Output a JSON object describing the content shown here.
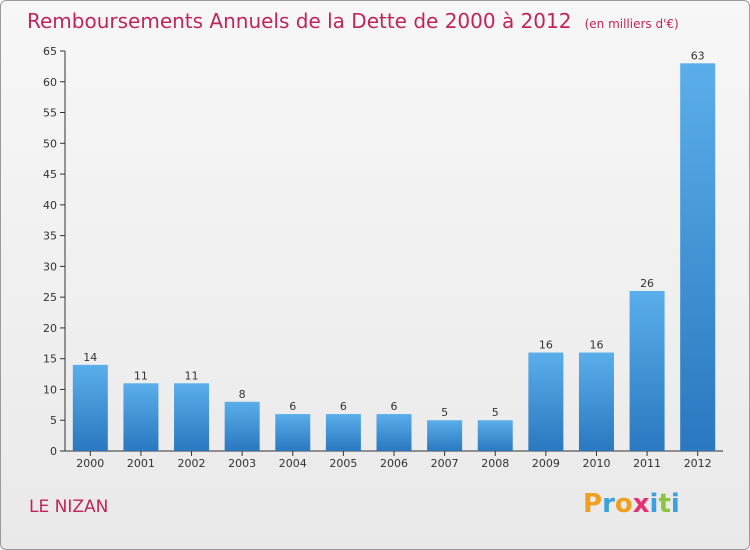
{
  "chart_data": {
    "type": "bar",
    "title": "Remboursements Annuels de la Dette de 2000 à 2012",
    "subtitle": "(en milliers d'€)",
    "categories": [
      "2000",
      "2001",
      "2002",
      "2003",
      "2004",
      "2005",
      "2006",
      "2007",
      "2008",
      "2009",
      "2010",
      "2011",
      "2012"
    ],
    "values": [
      14,
      11,
      11,
      8,
      6,
      6,
      6,
      5,
      5,
      16,
      16,
      26,
      63
    ],
    "ylim": [
      0,
      65
    ],
    "yticks": [
      0,
      5,
      10,
      15,
      20,
      25,
      30,
      35,
      40,
      45,
      50,
      55,
      60,
      65
    ],
    "grid": false,
    "bar_color": "#3a8fd8",
    "bar_color_light": "#5aaeea",
    "bar_color_dark": "#2a78c0"
  },
  "commune": "LE NIZAN",
  "logo": {
    "text": "Proxiti",
    "letters": [
      {
        "char": "P",
        "color": "#f0a020"
      },
      {
        "char": "r",
        "color": "#3aa0e0"
      },
      {
        "char": "o",
        "color": "#f0a020"
      },
      {
        "char": "x",
        "color": "#e83070"
      },
      {
        "char": "i",
        "color": "#3aa0e0"
      },
      {
        "char": "t",
        "color": "#8cc63e"
      },
      {
        "char": "i",
        "color": "#3aa0e0"
      }
    ]
  },
  "colors": {
    "title": "#c0245c",
    "axis": "#333333"
  }
}
